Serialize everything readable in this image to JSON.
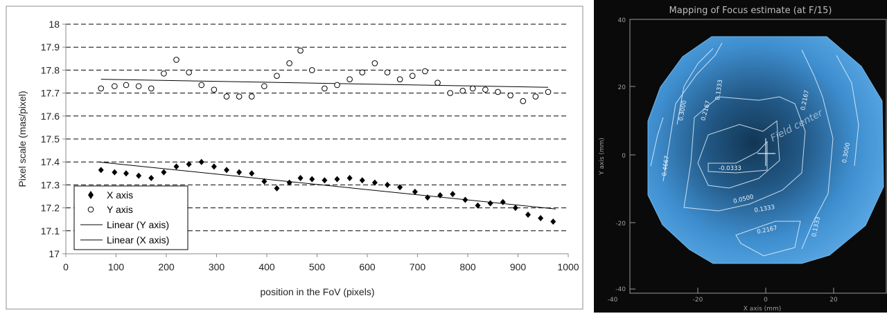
{
  "left_chart": {
    "ylabel": "Pixel scale (mas/pixel)",
    "xlabel": "position in the FoV (pixels)",
    "xlim": [
      0,
      1000
    ],
    "ylim": [
      17,
      18
    ],
    "x_ticks": [
      "0",
      "100",
      "200",
      "300",
      "400",
      "500",
      "600",
      "700",
      "800",
      "900",
      "1000"
    ],
    "y_ticks": [
      "17",
      "17.1",
      "17.2",
      "17.3",
      "17.4",
      "17.5",
      "17.6",
      "17.7",
      "17.8",
      "17.9",
      "18"
    ],
    "legend": [
      {
        "label": "X axis",
        "marker": "filled-diamond"
      },
      {
        "label": "Y axis",
        "marker": "open-circle"
      },
      {
        "label": "Linear (Y axis)",
        "marker": "line"
      },
      {
        "label": "Linear (X axis)",
        "marker": "line"
      }
    ]
  },
  "right_chart": {
    "title": "Mapping of Focus estimate (at F/15)",
    "xlabel": "X axis (mm)",
    "ylabel": "Y axis (mm)",
    "x_ticks": [
      "-40",
      "-20",
      "0",
      "20"
    ],
    "y_ticks": [
      "40",
      "20",
      "0",
      "-20",
      "-40"
    ],
    "contour_labels": [
      "0.1333",
      "0.2167",
      "0.3000",
      "0.2167",
      "0.4667",
      "-0.0333",
      "0.0500",
      "0.1333",
      "0.2167",
      "0.1333",
      "0.3000"
    ],
    "annotation": "Field center",
    "colors": {
      "field": "#3f8fd0",
      "edge": "#5ca9e4",
      "center": "#123654"
    }
  },
  "chart_data": [
    {
      "type": "scatter",
      "title": "",
      "xlabel": "position in the FoV (pixels)",
      "ylabel": "Pixel scale (mas/pixel)",
      "xlim": [
        0,
        1000
      ],
      "ylim": [
        17,
        18
      ],
      "grid": "dashed horizontal",
      "legend_position": "bottom-left",
      "series": [
        {
          "name": "X axis",
          "marker": "filled-diamond",
          "color": "#000000",
          "x": [
            70,
            97,
            120,
            145,
            170,
            195,
            220,
            245,
            270,
            295,
            320,
            345,
            370,
            395,
            420,
            445,
            467,
            490,
            515,
            540,
            565,
            590,
            615,
            640,
            665,
            695,
            720,
            745,
            770,
            795,
            820,
            845,
            870,
            895,
            920,
            945,
            970
          ],
          "y": [
            17.365,
            17.355,
            17.35,
            17.34,
            17.33,
            17.355,
            17.38,
            17.39,
            17.4,
            17.38,
            17.365,
            17.355,
            17.35,
            17.315,
            17.285,
            17.31,
            17.33,
            17.325,
            17.32,
            17.325,
            17.33,
            17.32,
            17.31,
            17.3,
            17.29,
            17.27,
            17.245,
            17.255,
            17.26,
            17.235,
            17.21,
            17.22,
            17.225,
            17.2,
            17.17,
            17.155,
            17.14
          ]
        },
        {
          "name": "Y axis",
          "marker": "open-circle",
          "color": "#000000",
          "x": [
            70,
            97,
            120,
            145,
            170,
            195,
            220,
            245,
            270,
            295,
            320,
            345,
            370,
            395,
            420,
            445,
            467,
            490,
            515,
            540,
            565,
            590,
            615,
            640,
            665,
            690,
            715,
            740,
            765,
            790,
            810,
            835,
            860,
            885,
            910,
            935,
            960
          ],
          "y": [
            17.72,
            17.73,
            17.735,
            17.73,
            17.72,
            17.785,
            17.845,
            17.79,
            17.735,
            17.715,
            17.685,
            17.685,
            17.685,
            17.73,
            17.775,
            17.83,
            17.885,
            17.8,
            17.72,
            17.735,
            17.76,
            17.79,
            17.83,
            17.79,
            17.76,
            17.775,
            17.795,
            17.745,
            17.7,
            17.71,
            17.72,
            17.715,
            17.705,
            17.69,
            17.665,
            17.685,
            17.705
          ]
        },
        {
          "name": "Linear (Y axis)",
          "type": "line",
          "x": [
            70,
            960
          ],
          "y": [
            17.76,
            17.725
          ]
        },
        {
          "name": "Linear (X axis)",
          "type": "line",
          "x": [
            65,
            975
          ],
          "y": [
            17.4,
            17.195
          ]
        }
      ]
    },
    {
      "type": "heatmap",
      "title": "Mapping of Focus estimate (at F/15)",
      "xlabel": "X axis (mm)",
      "ylabel": "Y axis (mm)",
      "contour_levels": [
        -0.0333,
        0.05,
        0.1333,
        0.2167,
        0.3,
        0.4667
      ]
    }
  ]
}
